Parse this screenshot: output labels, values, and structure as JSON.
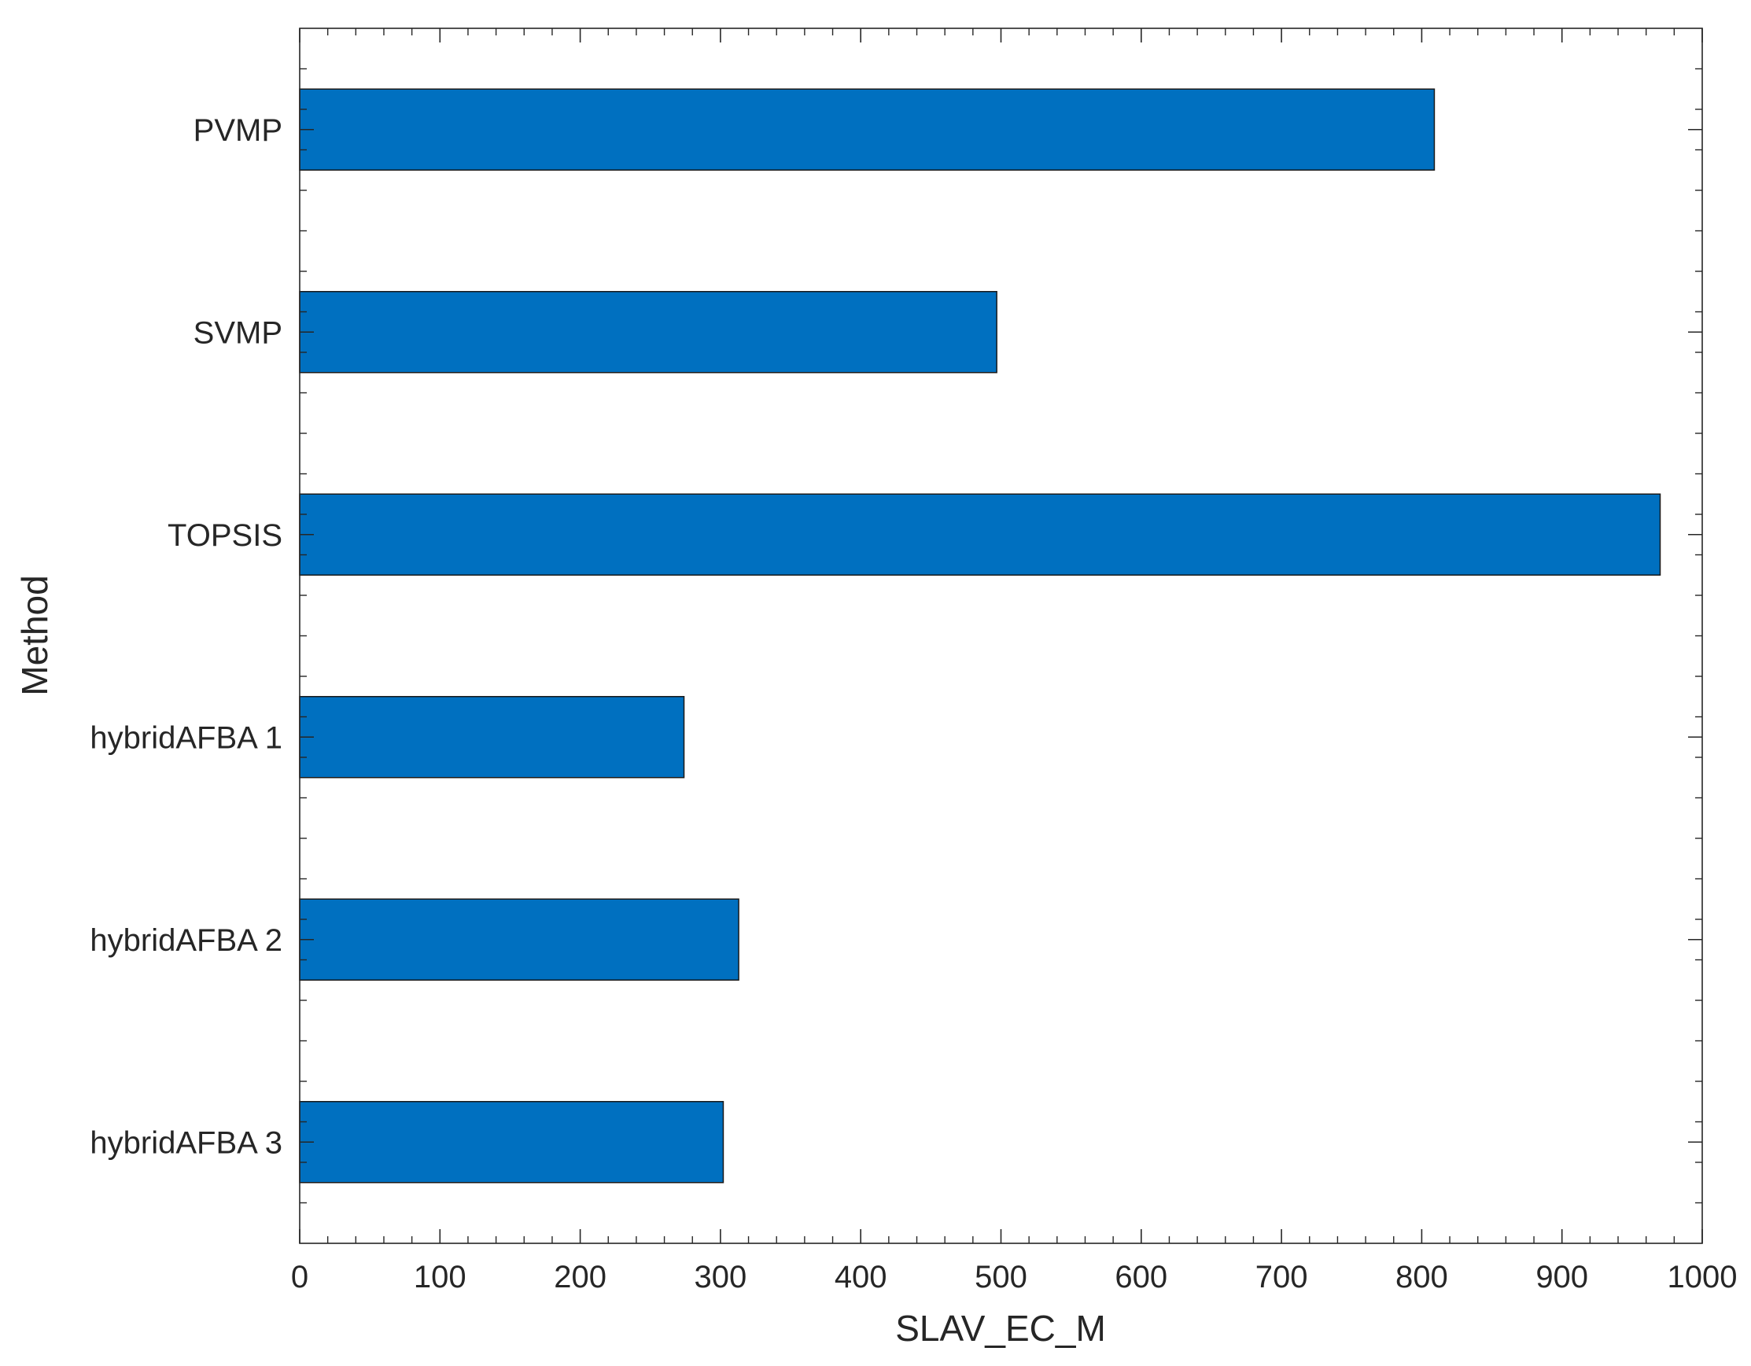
{
  "chart_data": {
    "type": "bar",
    "orientation": "horizontal",
    "categories": [
      "PVMP",
      "SVMP",
      "TOPSIS",
      "hybridAFBA 1",
      "hybridAFBA 2",
      "hybridAFBA 3"
    ],
    "values": [
      809,
      497,
      970,
      274,
      313,
      302
    ],
    "xlabel": "SLAV_EC_M",
    "ylabel": "Method",
    "xlim": [
      0,
      1000
    ],
    "x_ticks": [
      "0",
      "100",
      "200",
      "300",
      "400",
      "500",
      "600",
      "700",
      "800",
      "900",
      "1000"
    ],
    "bar_color": "#0070C0",
    "grid": false,
    "legend": "none"
  }
}
